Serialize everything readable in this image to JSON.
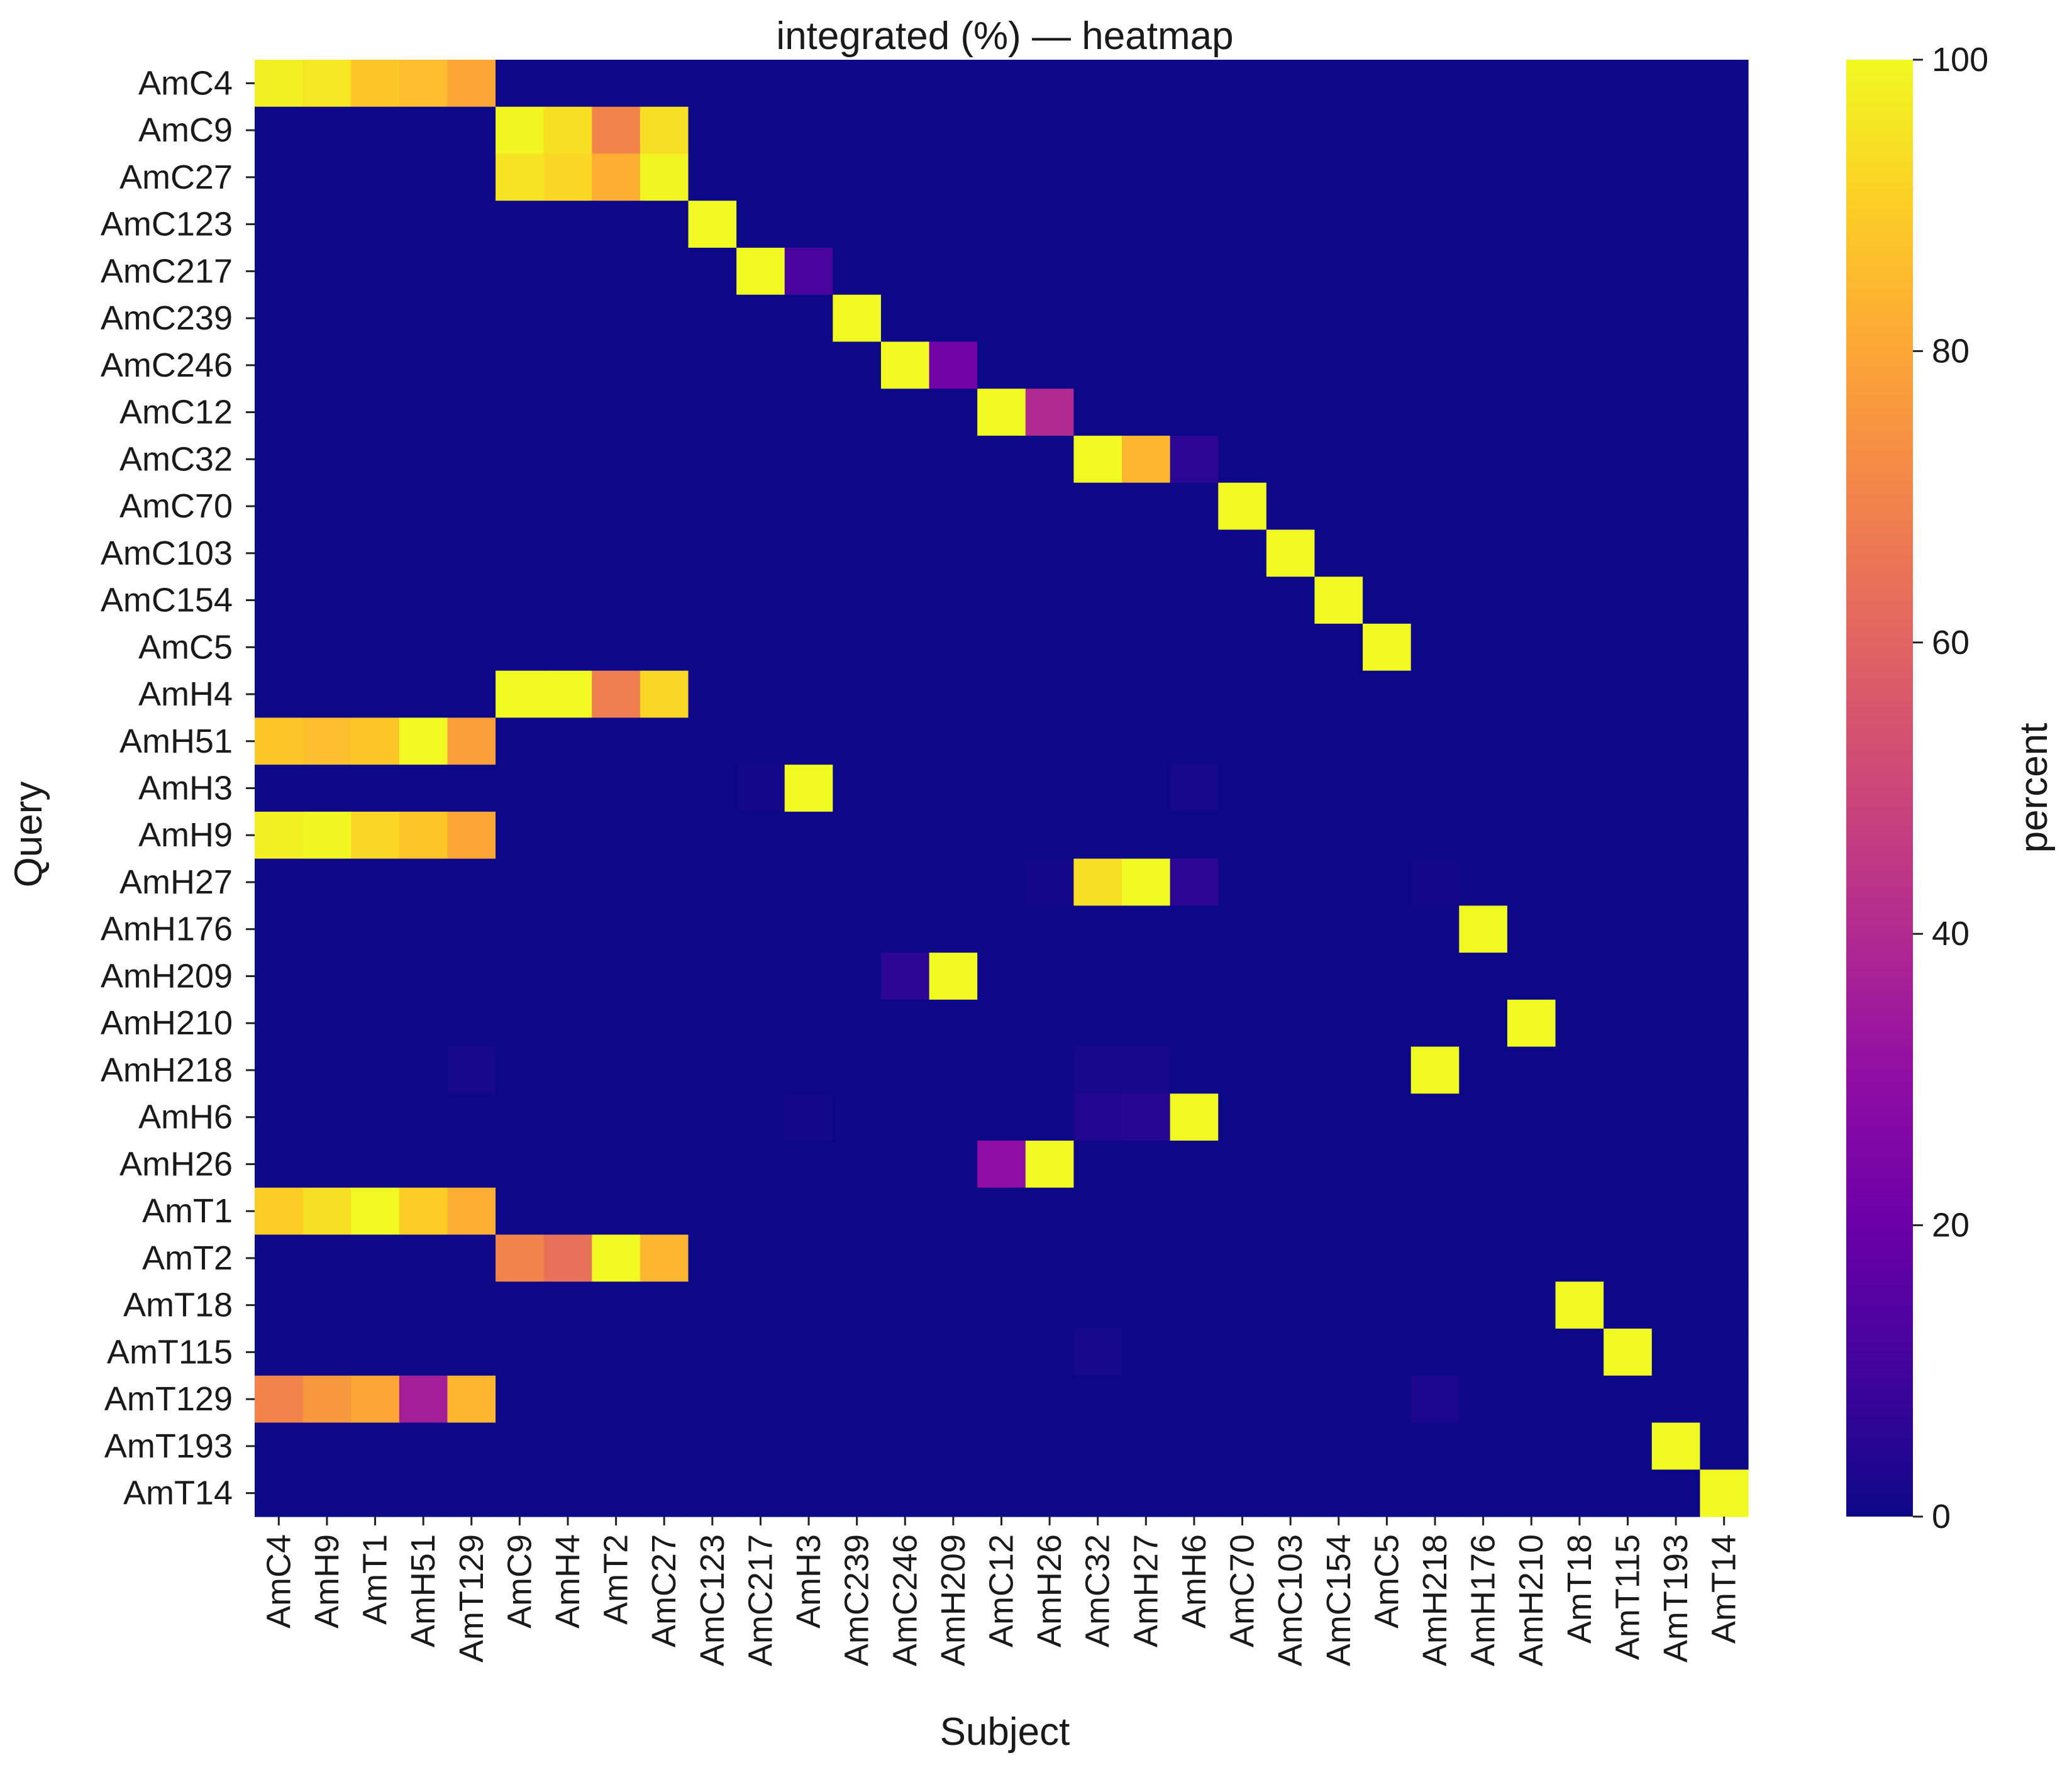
{
  "chart_data": {
    "type": "heatmap",
    "title": "integrated (%) — heatmap",
    "xlabel": "Subject",
    "ylabel": "Query",
    "colorbar_label": "percent",
    "colormap": "plasma",
    "vmin": 0,
    "vmax": 100,
    "colorbar_ticks": [
      "0",
      "20",
      "40",
      "60",
      "80",
      "100"
    ],
    "rows": [
      "AmC4",
      "AmC9",
      "AmC27",
      "AmC123",
      "AmC217",
      "AmC239",
      "AmC246",
      "AmC12",
      "AmC32",
      "AmC70",
      "AmC103",
      "AmC154",
      "AmC5",
      "AmH4",
      "AmH51",
      "AmH3",
      "AmH9",
      "AmH27",
      "AmH176",
      "AmH209",
      "AmH210",
      "AmH218",
      "AmH6",
      "AmH26",
      "AmT1",
      "AmT2",
      "AmT18",
      "AmT115",
      "AmT129",
      "AmT193",
      "AmT14"
    ],
    "columns": [
      "AmC4",
      "AmH9",
      "AmT1",
      "AmH51",
      "AmT129",
      "AmC9",
      "AmH4",
      "AmT2",
      "AmC27",
      "AmC123",
      "AmC217",
      "AmH3",
      "AmC239",
      "AmC246",
      "AmH209",
      "AmC12",
      "AmH26",
      "AmC32",
      "AmH27",
      "AmH6",
      "AmC70",
      "AmC103",
      "AmC154",
      "AmC5",
      "AmH218",
      "AmH176",
      "AmH210",
      "AmT18",
      "AmT115",
      "AmT193",
      "AmT14"
    ],
    "values": [
      [
        98,
        96,
        88,
        86,
        80,
        0,
        0,
        0,
        0,
        0,
        0,
        0,
        0,
        0,
        0,
        0,
        0,
        0,
        0,
        0,
        0,
        0,
        0,
        0,
        0,
        0,
        0,
        0,
        0,
        0,
        0
      ],
      [
        0,
        0,
        0,
        0,
        0,
        99,
        94,
        70,
        94,
        0,
        0,
        0,
        0,
        0,
        0,
        0,
        0,
        0,
        0,
        0,
        0,
        0,
        0,
        0,
        0,
        0,
        0,
        0,
        0,
        0,
        0
      ],
      [
        0,
        0,
        0,
        0,
        0,
        95,
        92,
        82,
        99,
        0,
        0,
        0,
        0,
        0,
        0,
        0,
        0,
        0,
        0,
        0,
        0,
        0,
        0,
        0,
        0,
        0,
        0,
        0,
        0,
        0,
        0
      ],
      [
        0,
        0,
        0,
        0,
        0,
        0,
        0,
        0,
        0,
        100,
        0,
        0,
        0,
        0,
        0,
        0,
        0,
        0,
        0,
        0,
        0,
        0,
        0,
        0,
        0,
        0,
        0,
        0,
        0,
        0,
        0
      ],
      [
        0,
        0,
        0,
        0,
        0,
        0,
        0,
        0,
        0,
        0,
        100,
        12,
        0,
        0,
        0,
        0,
        0,
        0,
        0,
        0,
        0,
        0,
        0,
        0,
        0,
        0,
        0,
        0,
        0,
        0,
        0
      ],
      [
        0,
        0,
        0,
        0,
        0,
        0,
        0,
        0,
        0,
        0,
        0,
        0,
        100,
        0,
        0,
        0,
        0,
        0,
        0,
        0,
        0,
        0,
        0,
        0,
        0,
        0,
        0,
        0,
        0,
        0,
        0
      ],
      [
        0,
        0,
        0,
        0,
        0,
        0,
        0,
        0,
        0,
        0,
        0,
        0,
        0,
        100,
        22,
        0,
        0,
        0,
        0,
        0,
        0,
        0,
        0,
        0,
        0,
        0,
        0,
        0,
        0,
        0,
        0
      ],
      [
        0,
        0,
        0,
        0,
        0,
        0,
        0,
        0,
        0,
        0,
        0,
        0,
        0,
        0,
        0,
        100,
        40,
        0,
        0,
        0,
        0,
        0,
        0,
        0,
        0,
        0,
        0,
        0,
        0,
        0,
        0
      ],
      [
        0,
        0,
        0,
        0,
        0,
        0,
        0,
        0,
        0,
        0,
        0,
        0,
        0,
        0,
        0,
        0,
        0,
        100,
        84,
        6,
        0,
        0,
        0,
        0,
        0,
        0,
        0,
        0,
        0,
        0,
        0
      ],
      [
        0,
        0,
        0,
        0,
        0,
        0,
        0,
        0,
        0,
        0,
        0,
        0,
        0,
        0,
        0,
        0,
        0,
        0,
        0,
        0,
        100,
        0,
        0,
        0,
        0,
        0,
        0,
        0,
        0,
        0,
        0
      ],
      [
        0,
        0,
        0,
        0,
        0,
        0,
        0,
        0,
        0,
        0,
        0,
        0,
        0,
        0,
        0,
        0,
        0,
        0,
        0,
        0,
        0,
        100,
        0,
        0,
        0,
        0,
        0,
        0,
        0,
        0,
        0
      ],
      [
        0,
        0,
        0,
        0,
        0,
        0,
        0,
        0,
        0,
        0,
        0,
        0,
        0,
        0,
        0,
        0,
        0,
        0,
        0,
        0,
        0,
        0,
        100,
        0,
        0,
        0,
        0,
        0,
        0,
        0,
        0
      ],
      [
        0,
        0,
        0,
        0,
        0,
        0,
        0,
        0,
        0,
        0,
        0,
        0,
        0,
        0,
        0,
        0,
        0,
        0,
        0,
        0,
        0,
        0,
        0,
        100,
        0,
        0,
        0,
        0,
        0,
        0,
        0
      ],
      [
        0,
        0,
        0,
        0,
        0,
        100,
        100,
        68,
        92,
        0,
        0,
        0,
        0,
        0,
        0,
        0,
        0,
        0,
        0,
        0,
        0,
        0,
        0,
        0,
        0,
        0,
        0,
        0,
        0,
        0,
        0
      ],
      [
        88,
        86,
        88,
        100,
        78,
        0,
        0,
        0,
        0,
        0,
        0,
        0,
        0,
        0,
        0,
        0,
        0,
        0,
        0,
        0,
        0,
        0,
        0,
        0,
        0,
        0,
        0,
        0,
        0,
        0,
        0
      ],
      [
        0,
        0,
        0,
        0,
        0,
        0,
        0,
        0,
        0,
        0,
        1,
        100,
        0,
        0,
        0,
        0,
        0,
        0,
        0,
        2,
        0,
        0,
        0,
        0,
        0,
        0,
        0,
        0,
        0,
        0,
        0
      ],
      [
        98,
        99,
        92,
        88,
        80,
        0,
        0,
        0,
        0,
        0,
        0,
        0,
        0,
        0,
        0,
        0,
        0,
        0,
        0,
        0,
        0,
        0,
        0,
        0,
        0,
        0,
        0,
        0,
        0,
        0,
        0
      ],
      [
        0,
        0,
        0,
        0,
        0,
        0,
        0,
        0,
        0,
        0,
        0,
        0,
        0,
        0,
        0,
        0,
        1,
        94,
        100,
        6,
        0,
        0,
        0,
        0,
        1,
        0,
        0,
        0,
        0,
        0,
        0
      ],
      [
        0,
        0,
        0,
        0,
        0,
        0,
        0,
        0,
        0,
        0,
        0,
        0,
        0,
        0,
        0,
        0,
        0,
        0,
        0,
        0,
        0,
        0,
        0,
        0,
        0,
        100,
        0,
        0,
        0,
        0,
        0
      ],
      [
        0,
        0,
        0,
        0,
        0,
        0,
        0,
        0,
        0,
        0,
        0,
        0,
        0,
        6,
        100,
        0,
        0,
        0,
        0,
        0,
        0,
        0,
        0,
        0,
        0,
        0,
        0,
        0,
        0,
        0,
        0
      ],
      [
        0,
        0,
        0,
        0,
        0,
        0,
        0,
        0,
        0,
        0,
        0,
        0,
        0,
        0,
        0,
        0,
        0,
        0,
        0,
        0,
        0,
        0,
        0,
        0,
        0,
        0,
        100,
        0,
        0,
        0,
        0
      ],
      [
        0,
        0,
        0,
        0,
        2,
        0,
        0,
        0,
        0,
        0,
        0,
        0,
        0,
        0,
        0,
        0,
        0,
        2,
        2,
        0,
        0,
        0,
        0,
        0,
        100,
        0,
        0,
        0,
        0,
        0,
        0
      ],
      [
        0,
        0,
        0,
        0,
        0,
        0,
        0,
        0,
        0,
        0,
        0,
        1,
        0,
        0,
        0,
        0,
        0,
        4,
        5,
        100,
        0,
        0,
        0,
        0,
        0,
        0,
        0,
        0,
        0,
        0,
        0
      ],
      [
        0,
        0,
        0,
        0,
        0,
        0,
        0,
        0,
        0,
        0,
        0,
        0,
        0,
        0,
        0,
        30,
        100,
        0,
        0,
        0,
        0,
        0,
        0,
        0,
        0,
        0,
        0,
        0,
        0,
        0,
        0
      ],
      [
        90,
        94,
        100,
        90,
        82,
        0,
        0,
        0,
        0,
        0,
        0,
        0,
        0,
        0,
        0,
        0,
        0,
        0,
        0,
        0,
        0,
        0,
        0,
        0,
        0,
        0,
        0,
        0,
        0,
        0,
        0
      ],
      [
        0,
        0,
        0,
        0,
        0,
        70,
        64,
        100,
        84,
        0,
        0,
        0,
        0,
        0,
        0,
        0,
        0,
        0,
        0,
        0,
        0,
        0,
        0,
        0,
        0,
        0,
        0,
        0,
        0,
        0,
        0
      ],
      [
        0,
        0,
        0,
        0,
        0,
        0,
        0,
        0,
        0,
        0,
        0,
        0,
        0,
        0,
        0,
        0,
        0,
        0,
        0,
        0,
        0,
        0,
        0,
        0,
        0,
        0,
        0,
        100,
        0,
        0,
        0
      ],
      [
        0,
        0,
        0,
        0,
        0,
        0,
        0,
        0,
        0,
        0,
        0,
        0,
        0,
        0,
        0,
        0,
        0,
        2,
        0,
        0,
        0,
        0,
        0,
        0,
        0,
        0,
        0,
        0,
        100,
        0,
        0
      ],
      [
        70,
        76,
        80,
        36,
        84,
        0,
        0,
        0,
        0,
        0,
        0,
        0,
        0,
        0,
        0,
        0,
        0,
        0,
        0,
        0,
        0,
        0,
        0,
        0,
        3,
        0,
        0,
        0,
        0,
        0,
        0
      ],
      [
        0,
        0,
        0,
        0,
        0,
        0,
        0,
        0,
        0,
        0,
        0,
        0,
        0,
        0,
        0,
        0,
        0,
        0,
        0,
        0,
        0,
        0,
        0,
        0,
        0,
        0,
        0,
        0,
        0,
        100,
        0
      ],
      [
        0,
        0,
        0,
        0,
        0,
        0,
        0,
        0,
        0,
        0,
        0,
        0,
        0,
        0,
        0,
        0,
        0,
        0,
        0,
        0,
        0,
        0,
        0,
        0,
        0,
        0,
        0,
        0,
        0,
        0,
        100
      ]
    ]
  }
}
